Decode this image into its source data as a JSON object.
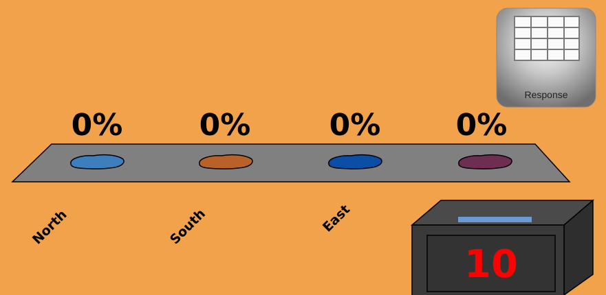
{
  "chart_data": {
    "type": "bar",
    "categories": [
      "North",
      "South",
      "East",
      ""
    ],
    "value_labels": [
      "0%",
      "0%",
      "0%",
      "0%"
    ],
    "values": [
      0,
      0,
      0,
      0
    ],
    "colors": [
      "#3D7FBD",
      "#B8622A",
      "#0A4EA6",
      "#6E2E52"
    ]
  },
  "response_button": {
    "label": "Response",
    "icon": "grid-icon"
  },
  "countdown": {
    "value": "10"
  }
}
